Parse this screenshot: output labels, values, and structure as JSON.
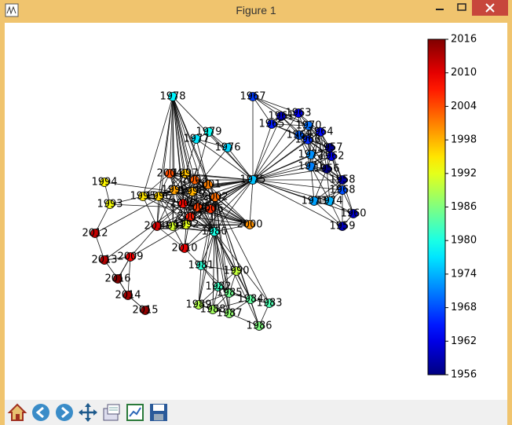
{
  "window": {
    "title": "Figure 1"
  },
  "chart_data": {
    "type": "network",
    "colormap": "jet",
    "nodes": [
      1978,
      1967,
      1979,
      1977,
      1976,
      1994,
      1993,
      2012,
      2013,
      2009,
      2016,
      2014,
      2015,
      2010,
      2000,
      1980,
      1981,
      1990,
      1982,
      1985,
      1984,
      1983,
      1989,
      1988,
      1987,
      1986,
      1975,
      1963,
      1961,
      1965,
      1970,
      1964,
      1969,
      1966,
      1957,
      1962,
      1972,
      1971,
      1956,
      1958,
      1968,
      1960,
      1959,
      1973,
      1974,
      2004,
      1997,
      2003,
      2001,
      1999,
      1998,
      2002,
      1995,
      1996,
      2008,
      2005,
      2006,
      2007,
      1992,
      2011,
      1991
    ],
    "clim": [
      1956,
      2016
    ],
    "colorbar_ticks": [
      2016,
      2010,
      2004,
      1998,
      1992,
      1986,
      1980,
      1974,
      1968,
      1962,
      1956
    ]
  }
}
